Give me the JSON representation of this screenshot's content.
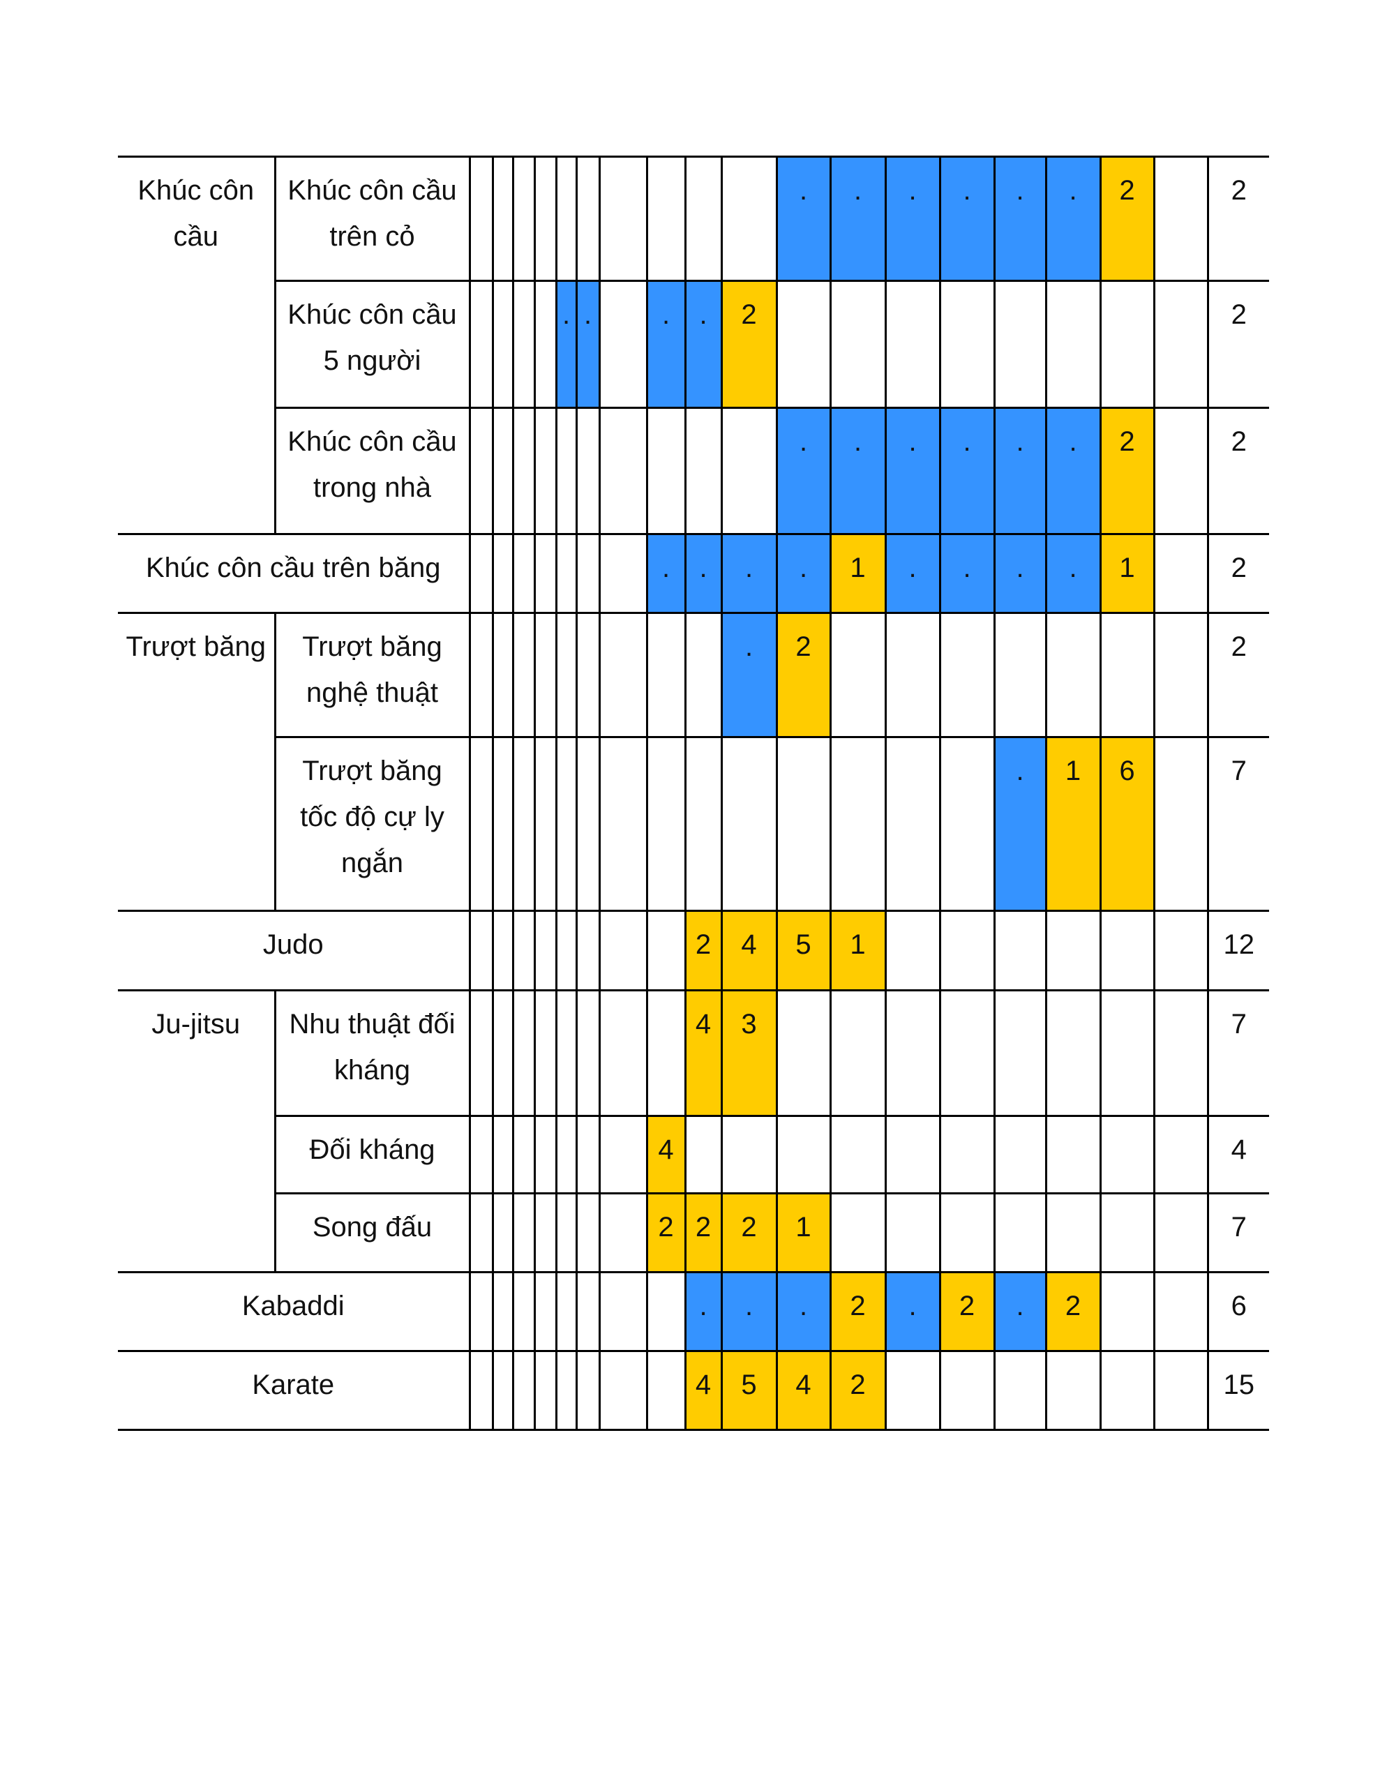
{
  "colors": {
    "blue": "#3593ff",
    "yellow": "#ffcc00"
  },
  "rows": [
    {
      "group": "Khúc côn cầu",
      "group_span": 3,
      "name": "Khúc côn cầu trên cỏ",
      "total": "2",
      "cells": [
        {
          "col": 10,
          "text": ".",
          "color": "blue"
        },
        {
          "col": 11,
          "text": ".",
          "color": "blue"
        },
        {
          "col": 12,
          "text": ".",
          "color": "blue"
        },
        {
          "col": 13,
          "text": ".",
          "color": "blue"
        },
        {
          "col": 14,
          "text": ".",
          "color": "blue"
        },
        {
          "col": 15,
          "text": ".",
          "color": "blue"
        },
        {
          "col": 16,
          "text": "2",
          "color": "yellow"
        }
      ]
    },
    {
      "name": "Khúc côn cầu 5 người",
      "total": "2",
      "cells": [
        {
          "col": 4,
          "text": ".",
          "color": "blue"
        },
        {
          "col": 5,
          "text": ".",
          "color": "blue"
        },
        {
          "col": 7,
          "text": ".",
          "color": "blue"
        },
        {
          "col": 8,
          "text": ".",
          "color": "blue"
        },
        {
          "col": 9,
          "text": "2",
          "color": "yellow"
        }
      ]
    },
    {
      "name": "Khúc côn cầu trong nhà",
      "total": "2",
      "cells": [
        {
          "col": 10,
          "text": ".",
          "color": "blue"
        },
        {
          "col": 11,
          "text": ".",
          "color": "blue"
        },
        {
          "col": 12,
          "text": ".",
          "color": "blue"
        },
        {
          "col": 13,
          "text": ".",
          "color": "blue"
        },
        {
          "col": 14,
          "text": ".",
          "color": "blue"
        },
        {
          "col": 15,
          "text": ".",
          "color": "blue"
        },
        {
          "col": 16,
          "text": "2",
          "color": "yellow"
        }
      ]
    },
    {
      "single": "Khúc côn cầu trên băng",
      "total": "2",
      "cells": [
        {
          "col": 7,
          "text": ".",
          "color": "blue"
        },
        {
          "col": 8,
          "text": ".",
          "color": "blue"
        },
        {
          "col": 9,
          "text": ".",
          "color": "blue"
        },
        {
          "col": 10,
          "text": ".",
          "color": "blue"
        },
        {
          "col": 11,
          "text": "1",
          "color": "yellow"
        },
        {
          "col": 12,
          "text": ".",
          "color": "blue"
        },
        {
          "col": 13,
          "text": ".",
          "color": "blue"
        },
        {
          "col": 14,
          "text": ".",
          "color": "blue"
        },
        {
          "col": 15,
          "text": ".",
          "color": "blue"
        },
        {
          "col": 16,
          "text": "1",
          "color": "yellow"
        }
      ]
    },
    {
      "group": "Trượt băng",
      "group_span": 2,
      "name": "Trượt băng nghệ thuật",
      "total": "2",
      "cells": [
        {
          "col": 9,
          "text": ".",
          "color": "blue"
        },
        {
          "col": 10,
          "text": "2",
          "color": "yellow"
        }
      ]
    },
    {
      "name": "Trượt băng tốc độ cự ly ngắn",
      "total": "7",
      "cells": [
        {
          "col": 14,
          "text": ".",
          "color": "blue"
        },
        {
          "col": 15,
          "text": "1",
          "color": "yellow"
        },
        {
          "col": 16,
          "text": "6",
          "color": "yellow"
        }
      ]
    },
    {
      "single": "Judo",
      "total": "12",
      "cells": [
        {
          "col": 8,
          "text": "2",
          "color": "yellow"
        },
        {
          "col": 9,
          "text": "4",
          "color": "yellow"
        },
        {
          "col": 10,
          "text": "5",
          "color": "yellow"
        },
        {
          "col": 11,
          "text": "1",
          "color": "yellow"
        }
      ]
    },
    {
      "group": "Ju-jitsu",
      "group_span": 3,
      "name": "Nhu thuật đối kháng",
      "total": "7",
      "cells": [
        {
          "col": 8,
          "text": "4",
          "color": "yellow"
        },
        {
          "col": 9,
          "text": "3",
          "color": "yellow"
        }
      ]
    },
    {
      "name": "Đối kháng",
      "total": "4",
      "cells": [
        {
          "col": 7,
          "text": "4",
          "color": "yellow"
        }
      ]
    },
    {
      "name": "Song đấu",
      "total": "7",
      "cells": [
        {
          "col": 7,
          "text": "2",
          "color": "yellow"
        },
        {
          "col": 8,
          "text": "2",
          "color": "yellow"
        },
        {
          "col": 9,
          "text": "2",
          "color": "yellow"
        },
        {
          "col": 10,
          "text": "1",
          "color": "yellow"
        }
      ]
    },
    {
      "single": "Kabaddi",
      "total": "6",
      "cells": [
        {
          "col": 8,
          "text": ".",
          "color": "blue"
        },
        {
          "col": 9,
          "text": ".",
          "color": "blue"
        },
        {
          "col": 10,
          "text": ".",
          "color": "blue"
        },
        {
          "col": 11,
          "text": "2",
          "color": "yellow"
        },
        {
          "col": 12,
          "text": ".",
          "color": "blue"
        },
        {
          "col": 13,
          "text": "2",
          "color": "yellow"
        },
        {
          "col": 14,
          "text": ".",
          "color": "blue"
        },
        {
          "col": 15,
          "text": "2",
          "color": "yellow"
        }
      ]
    },
    {
      "single": "Karate",
      "total": "15",
      "cells": [
        {
          "col": 8,
          "text": "4",
          "color": "yellow"
        },
        {
          "col": 9,
          "text": "5",
          "color": "yellow"
        },
        {
          "col": 10,
          "text": "4",
          "color": "yellow"
        },
        {
          "col": 11,
          "text": "2",
          "color": "yellow"
        }
      ]
    }
  ]
}
